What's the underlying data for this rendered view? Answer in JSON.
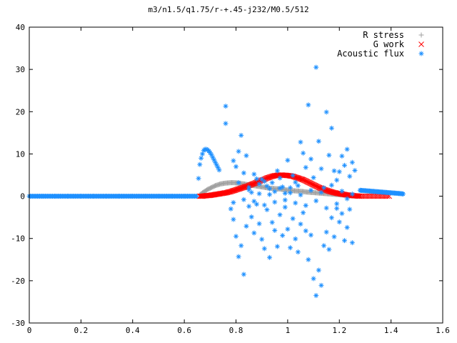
{
  "chart_data": {
    "type": "scatter",
    "title": "m3/n1.5/q1.75/r-+.45-j232/M0.5/512",
    "xlabel": "",
    "ylabel": "",
    "xlim": [
      0,
      1.6
    ],
    "ylim": [
      -30,
      40
    ],
    "xticks": [
      "0",
      "0.2",
      "0.4",
      "0.6",
      "0.8",
      "1",
      "1.2",
      "1.4",
      "1.6"
    ],
    "yticks": [
      "-30",
      "-20",
      "-10",
      "0",
      "10",
      "20",
      "30",
      "40"
    ],
    "legend_position": "top-right",
    "grid": false,
    "series": [
      {
        "name": "R stress",
        "marker": "plus",
        "color": "#a0a0a0",
        "points": [
          [
            0.66,
            0.3
          ],
          [
            0.67,
            0.8
          ],
          [
            0.68,
            1.2
          ],
          [
            0.69,
            1.6
          ],
          [
            0.7,
            1.9
          ],
          [
            0.71,
            2.2
          ],
          [
            0.72,
            2.5
          ],
          [
            0.73,
            2.7
          ],
          [
            0.74,
            2.9
          ],
          [
            0.75,
            3.0
          ],
          [
            0.76,
            3.1
          ],
          [
            0.77,
            3.15
          ],
          [
            0.78,
            3.2
          ],
          [
            0.79,
            3.2
          ],
          [
            0.8,
            3.15
          ],
          [
            0.81,
            3.1
          ],
          [
            0.82,
            3.0
          ],
          [
            0.83,
            2.9
          ],
          [
            0.84,
            2.8
          ],
          [
            0.85,
            2.7
          ],
          [
            0.86,
            2.6
          ],
          [
            0.87,
            2.5
          ],
          [
            0.88,
            2.4
          ],
          [
            0.89,
            2.3
          ],
          [
            0.9,
            2.2
          ],
          [
            0.91,
            2.1
          ],
          [
            0.92,
            2.0
          ],
          [
            0.93,
            1.9
          ],
          [
            0.94,
            1.85
          ],
          [
            0.95,
            1.8
          ],
          [
            0.96,
            1.75
          ],
          [
            0.97,
            1.7
          ],
          [
            0.98,
            1.6
          ],
          [
            0.99,
            1.5
          ],
          [
            1.0,
            1.45
          ],
          [
            1.01,
            1.4
          ],
          [
            1.02,
            1.3
          ],
          [
            1.03,
            1.25
          ],
          [
            1.04,
            1.2
          ],
          [
            1.05,
            1.15
          ],
          [
            1.06,
            1.1
          ],
          [
            1.07,
            1.0
          ],
          [
            1.08,
            0.95
          ],
          [
            1.09,
            0.9
          ],
          [
            1.1,
            0.85
          ],
          [
            1.11,
            0.8
          ],
          [
            1.12,
            0.75
          ],
          [
            1.13,
            0.7
          ],
          [
            1.14,
            0.65
          ],
          [
            1.15,
            0.6
          ],
          [
            1.16,
            0.55
          ],
          [
            1.17,
            0.5
          ],
          [
            1.18,
            0.45
          ],
          [
            1.19,
            0.4
          ],
          [
            1.2,
            0.35
          ],
          [
            1.21,
            0.3
          ],
          [
            1.22,
            0.25
          ],
          [
            1.23,
            0.2
          ],
          [
            1.24,
            0.15
          ],
          [
            1.25,
            0.1
          ],
          [
            1.26,
            0.05
          ],
          [
            1.27,
            0.02
          ],
          [
            1.28,
            0.0
          ]
        ]
      },
      {
        "name": "G work",
        "marker": "cross",
        "color": "#ff0000",
        "points": [
          [
            0.66,
            0.0
          ],
          [
            0.67,
            0.0
          ],
          [
            0.68,
            0.1
          ],
          [
            0.69,
            0.15
          ],
          [
            0.7,
            0.2
          ],
          [
            0.71,
            0.3
          ],
          [
            0.72,
            0.4
          ],
          [
            0.73,
            0.5
          ],
          [
            0.74,
            0.6
          ],
          [
            0.75,
            0.7
          ],
          [
            0.76,
            0.8
          ],
          [
            0.77,
            0.95
          ],
          [
            0.78,
            1.1
          ],
          [
            0.79,
            1.3
          ],
          [
            0.8,
            1.5
          ],
          [
            0.81,
            1.7
          ],
          [
            0.82,
            1.9
          ],
          [
            0.83,
            2.1
          ],
          [
            0.84,
            2.3
          ],
          [
            0.85,
            2.5
          ],
          [
            0.86,
            2.8
          ],
          [
            0.87,
            3.0
          ],
          [
            0.88,
            3.3
          ],
          [
            0.89,
            3.5
          ],
          [
            0.9,
            3.8
          ],
          [
            0.91,
            4.0
          ],
          [
            0.92,
            4.3
          ],
          [
            0.93,
            4.5
          ],
          [
            0.94,
            4.7
          ],
          [
            0.95,
            4.85
          ],
          [
            0.96,
            4.95
          ],
          [
            0.97,
            5.0
          ],
          [
            0.98,
            5.0
          ],
          [
            0.99,
            4.95
          ],
          [
            1.0,
            4.9
          ],
          [
            1.01,
            4.8
          ],
          [
            1.02,
            4.7
          ],
          [
            1.03,
            4.5
          ],
          [
            1.04,
            4.3
          ],
          [
            1.05,
            4.1
          ],
          [
            1.06,
            3.9
          ],
          [
            1.07,
            3.6
          ],
          [
            1.08,
            3.3
          ],
          [
            1.09,
            3.0
          ],
          [
            1.1,
            2.7
          ],
          [
            1.11,
            2.4
          ],
          [
            1.12,
            2.1
          ],
          [
            1.13,
            1.85
          ],
          [
            1.14,
            1.6
          ],
          [
            1.15,
            1.4
          ],
          [
            1.16,
            1.2
          ],
          [
            1.17,
            1.0
          ],
          [
            1.18,
            0.85
          ],
          [
            1.19,
            0.7
          ],
          [
            1.2,
            0.6
          ],
          [
            1.21,
            0.5
          ],
          [
            1.22,
            0.4
          ],
          [
            1.23,
            0.3
          ],
          [
            1.24,
            0.2
          ],
          [
            1.25,
            0.15
          ],
          [
            1.26,
            0.1
          ],
          [
            1.27,
            0.05
          ],
          [
            1.28,
            0.0
          ],
          [
            1.3,
            0.0
          ],
          [
            1.32,
            0.0
          ],
          [
            1.34,
            0.0
          ],
          [
            1.36,
            0.0
          ],
          [
            1.38,
            0.0
          ],
          [
            1.4,
            0.0
          ]
        ]
      },
      {
        "name": "Acoustic flux",
        "marker": "star",
        "color": "#1e90ff",
        "line_points": [
          [
            0.0,
            0
          ],
          [
            0.05,
            0
          ],
          [
            0.1,
            0
          ],
          [
            0.15,
            0
          ],
          [
            0.2,
            0
          ],
          [
            0.25,
            0
          ],
          [
            0.3,
            0
          ],
          [
            0.35,
            0
          ],
          [
            0.4,
            0
          ],
          [
            0.45,
            0
          ],
          [
            0.5,
            0
          ],
          [
            0.55,
            0
          ],
          [
            0.6,
            0
          ],
          [
            0.62,
            0
          ],
          [
            0.64,
            0
          ],
          [
            0.65,
            0
          ]
        ],
        "hump_points": [
          [
            0.655,
            4.2
          ],
          [
            0.66,
            7.5
          ],
          [
            0.665,
            9.0
          ],
          [
            0.67,
            10.0
          ],
          [
            0.675,
            10.8
          ],
          [
            0.68,
            11.1
          ],
          [
            0.685,
            11.1
          ],
          [
            0.69,
            11.0
          ],
          [
            0.695,
            10.7
          ],
          [
            0.7,
            10.3
          ],
          [
            0.705,
            9.8
          ],
          [
            0.71,
            9.2
          ],
          [
            0.715,
            8.6
          ],
          [
            0.72,
            8.0
          ],
          [
            0.725,
            7.4
          ],
          [
            0.73,
            6.8
          ],
          [
            0.735,
            6.2
          ]
        ],
        "tail_points": [
          [
            1.28,
            1.4
          ],
          [
            1.29,
            1.35
          ],
          [
            1.3,
            1.3
          ],
          [
            1.31,
            1.25
          ],
          [
            1.32,
            1.2
          ],
          [
            1.33,
            1.15
          ],
          [
            1.34,
            1.1
          ],
          [
            1.35,
            1.05
          ],
          [
            1.36,
            1.0
          ],
          [
            1.37,
            0.95
          ],
          [
            1.38,
            0.9
          ],
          [
            1.39,
            0.85
          ],
          [
            1.4,
            0.8
          ],
          [
            1.41,
            0.75
          ],
          [
            1.42,
            0.7
          ],
          [
            1.43,
            0.65
          ],
          [
            1.44,
            0.6
          ],
          [
            1.45,
            0.5
          ]
        ],
        "scatter_points": [
          [
            0.76,
            21.3
          ],
          [
            0.76,
            17.2
          ],
          [
            0.79,
            8.4
          ],
          [
            0.8,
            7.0
          ],
          [
            0.81,
            10.6
          ],
          [
            0.82,
            14.4
          ],
          [
            0.83,
            5.5
          ],
          [
            0.84,
            9.6
          ],
          [
            0.85,
            2.1
          ],
          [
            0.86,
            0.9
          ],
          [
            0.87,
            5.2
          ],
          [
            0.88,
            4.1
          ],
          [
            0.89,
            2.9
          ],
          [
            0.9,
            4.0
          ],
          [
            0.91,
            3.5
          ],
          [
            0.92,
            2.4
          ],
          [
            0.93,
            1.8
          ],
          [
            0.94,
            3.2
          ],
          [
            0.95,
            1.1
          ],
          [
            0.96,
            6.0
          ],
          [
            0.97,
            4.3
          ],
          [
            0.98,
            2.2
          ],
          [
            0.99,
            0.7
          ],
          [
            1.0,
            8.5
          ],
          [
            1.01,
            2.0
          ],
          [
            1.02,
            4.9
          ],
          [
            1.03,
            3.3
          ],
          [
            1.04,
            2.5
          ],
          [
            1.05,
            12.8
          ],
          [
            1.06,
            10.2
          ],
          [
            1.07,
            6.8
          ],
          [
            1.08,
            21.6
          ],
          [
            1.09,
            8.8
          ],
          [
            1.1,
            4.4
          ],
          [
            1.11,
            30.5
          ],
          [
            1.12,
            13.0
          ],
          [
            1.13,
            6.5
          ],
          [
            1.14,
            2.0
          ],
          [
            1.15,
            19.9
          ],
          [
            1.16,
            9.7
          ],
          [
            1.17,
            16.1
          ],
          [
            1.18,
            6.0
          ],
          [
            1.19,
            3.8
          ],
          [
            1.2,
            5.8
          ],
          [
            1.21,
            9.5
          ],
          [
            1.22,
            7.3
          ],
          [
            1.23,
            11.1
          ],
          [
            1.24,
            4.7
          ],
          [
            1.25,
            8.0
          ],
          [
            1.26,
            6.1
          ],
          [
            0.78,
            -3.0
          ],
          [
            0.79,
            -5.5
          ],
          [
            0.8,
            -9.5
          ],
          [
            0.81,
            -14.3
          ],
          [
            0.82,
            -11.7
          ],
          [
            0.83,
            -18.5
          ],
          [
            0.84,
            -7.1
          ],
          [
            0.85,
            -2.4
          ],
          [
            0.86,
            -4.9
          ],
          [
            0.87,
            -8.7
          ],
          [
            0.88,
            -1.9
          ],
          [
            0.89,
            -6.5
          ],
          [
            0.9,
            -10.2
          ],
          [
            0.91,
            -12.4
          ],
          [
            0.92,
            -3.2
          ],
          [
            0.93,
            -14.5
          ],
          [
            0.94,
            -6.2
          ],
          [
            0.95,
            -8.1
          ],
          [
            0.96,
            -11.9
          ],
          [
            0.97,
            -4.4
          ],
          [
            0.98,
            -9.3
          ],
          [
            0.99,
            -2.6
          ],
          [
            1.0,
            -7.8
          ],
          [
            1.01,
            -12.2
          ],
          [
            1.02,
            -5.3
          ],
          [
            1.03,
            -10.1
          ],
          [
            1.04,
            -13.2
          ],
          [
            1.05,
            -6.6
          ],
          [
            1.06,
            -3.9
          ],
          [
            1.07,
            -8.2
          ],
          [
            1.08,
            -15.0
          ],
          [
            1.09,
            -9.2
          ],
          [
            1.1,
            -19.5
          ],
          [
            1.11,
            -23.5
          ],
          [
            1.12,
            -17.5
          ],
          [
            1.13,
            -21.1
          ],
          [
            1.14,
            -11.7
          ],
          [
            1.15,
            -8.5
          ],
          [
            1.16,
            -12.6
          ],
          [
            1.17,
            -5.1
          ],
          [
            1.18,
            -9.6
          ],
          [
            1.19,
            -2.9
          ],
          [
            1.2,
            -6.1
          ],
          [
            1.21,
            -4.1
          ],
          [
            1.22,
            -10.5
          ],
          [
            1.23,
            -7.4
          ],
          [
            1.24,
            -3.1
          ],
          [
            1.25,
            -11.0
          ],
          [
            0.79,
            -1.5
          ],
          [
            0.83,
            -0.8
          ],
          [
            0.87,
            -1.2
          ],
          [
            0.91,
            -2.1
          ],
          [
            0.95,
            -1.4
          ],
          [
            0.99,
            -0.9
          ],
          [
            1.03,
            -1.6
          ],
          [
            1.07,
            -2.2
          ],
          [
            1.11,
            -1.1
          ],
          [
            1.15,
            -2.8
          ],
          [
            1.19,
            -1.8
          ],
          [
            1.23,
            -0.6
          ],
          [
            0.81,
            3.2
          ],
          [
            0.85,
            1.5
          ],
          [
            0.89,
            0.6
          ],
          [
            0.93,
            0.4
          ],
          [
            0.97,
            1.9
          ],
          [
            1.01,
            0.8
          ],
          [
            1.05,
            0.3
          ],
          [
            1.09,
            1.4
          ],
          [
            1.13,
            0.9
          ],
          [
            1.17,
            2.6
          ],
          [
            1.21,
            1.2
          ],
          [
            1.25,
            0.5
          ]
        ]
      }
    ]
  }
}
